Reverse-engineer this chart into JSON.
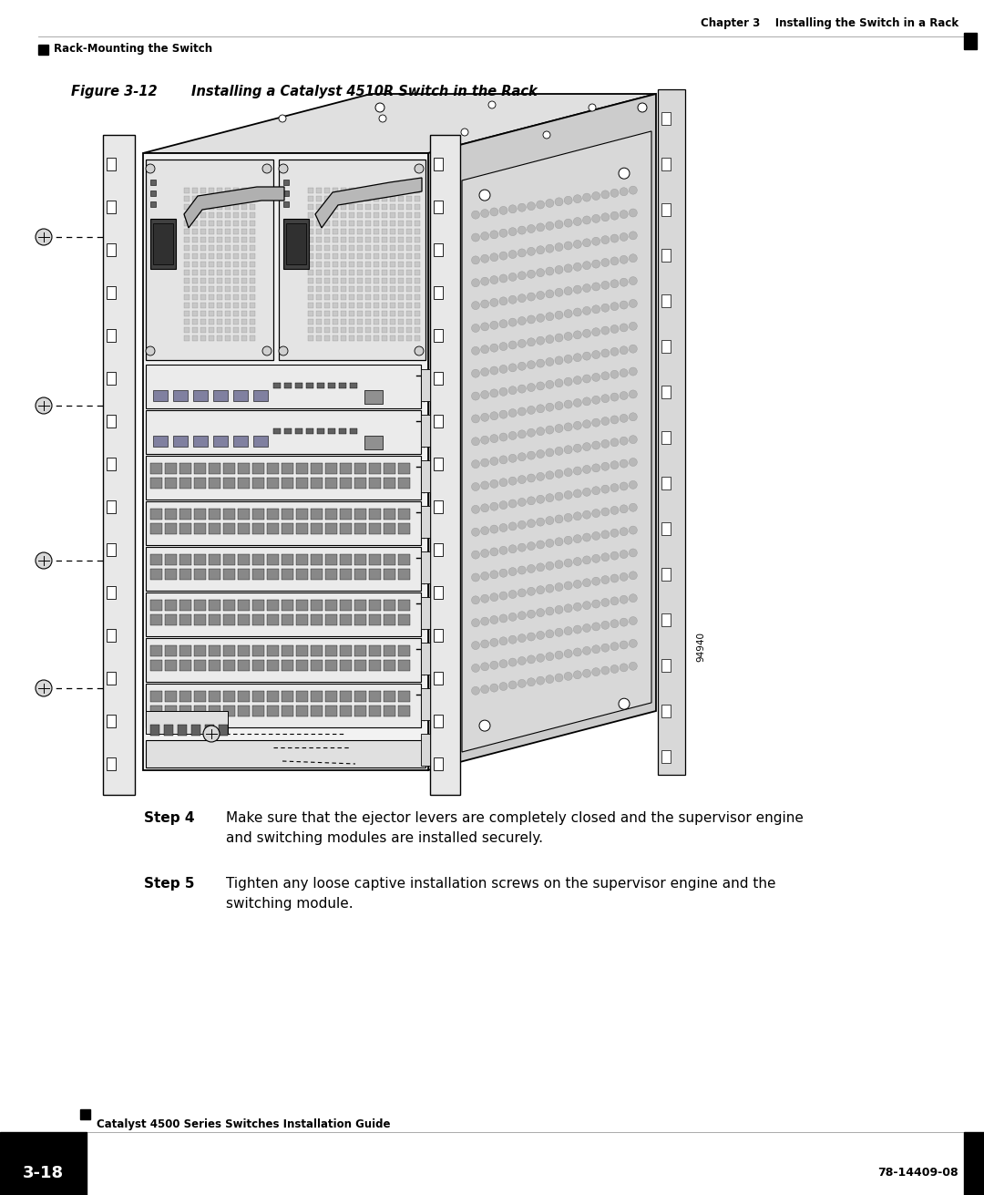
{
  "page_bg": "#ffffff",
  "header_line_color": "#aaaaaa",
  "header_text_right": "Chapter 3    Installing the Switch in a Rack",
  "header_text_left": "Rack-Mounting the Switch",
  "figure_label": "Figure 3-12",
  "figure_title": "Installing a Catalyst 4510R Switch in the Rack",
  "step4_label": "Step 4",
  "step4_text_line1": "Make sure that the ejector levers are completely closed and the supervisor engine",
  "step4_text_line2": "and switching modules are installed securely.",
  "step5_label": "Step 5",
  "step5_text_line1": "Tighten any loose captive installation screws on the supervisor engine and the",
  "step5_text_line2": "switching module.",
  "footer_center_text": "Catalyst 4500 Series Switches Installation Guide",
  "footer_right_text": "78-14409-08",
  "footer_page": "3-18",
  "label_94940": "94940"
}
